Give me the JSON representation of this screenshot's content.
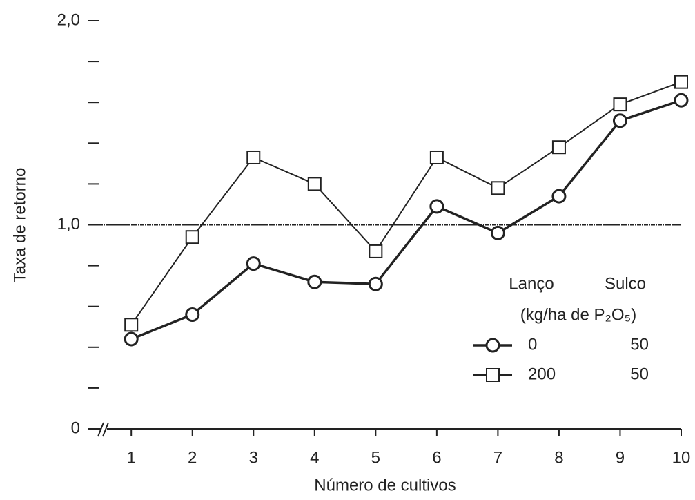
{
  "chart_data": {
    "type": "line",
    "x_label": "Número de cultivos",
    "y_label": "Taxa de retorno",
    "x": [
      1,
      2,
      3,
      4,
      5,
      6,
      7,
      8,
      9,
      10
    ],
    "xlim": [
      0.32,
      10
    ],
    "xticks": [
      1,
      2,
      3,
      4,
      5,
      6,
      7,
      8,
      9,
      10
    ],
    "ylim": [
      0,
      2
    ],
    "yticks": [
      0,
      {
        "value": 1,
        "label": "1,0"
      },
      {
        "value": 2,
        "label": "2,0"
      }
    ],
    "yminorticks": [
      0.2,
      0.4,
      0.6,
      0.8,
      1.2,
      1.4,
      1.6,
      1.8
    ],
    "hline": 1,
    "legend": {
      "headers": [
        "Lanço",
        "Sulco"
      ],
      "unit": "(kg/ha de P₂O₅)"
    },
    "series": [
      {
        "name": "0",
        "sulco": "50",
        "marker": "circle",
        "color": "#222222",
        "width": 3.5,
        "values": [
          0.44,
          0.56,
          0.81,
          0.72,
          0.71,
          1.09,
          0.96,
          1.14,
          1.51,
          1.61
        ]
      },
      {
        "name": "200",
        "sulco": "50",
        "marker": "square",
        "color": "#222222",
        "width": 2,
        "values": [
          0.51,
          0.94,
          1.33,
          1.2,
          0.87,
          1.33,
          1.18,
          1.38,
          1.59,
          1.7
        ]
      }
    ]
  }
}
